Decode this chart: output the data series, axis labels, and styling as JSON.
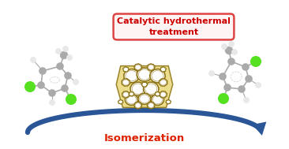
{
  "title_box_text": "Catalytic hydrothermal\ntreatment",
  "bottom_label": "Isomerization",
  "title_color": "#cc0000",
  "bottom_label_color": "#dd2200",
  "arrow_color": "#2a5596",
  "box_edge_color": "#dd4444",
  "box_face_color": "#fff4f4",
  "background_color": "#ffffff",
  "zeolite_color": "#8a7010",
  "zeolite_fill": "#e8d878",
  "mol_gray": "#aaaaaa",
  "mol_lgray": "#cccccc",
  "mol_white": "#e8e8e8",
  "mol_green": "#55e020",
  "mol_bond": "#aaaaaa"
}
